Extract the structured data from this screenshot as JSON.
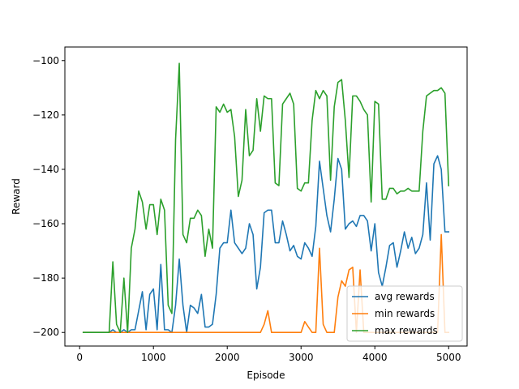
{
  "chart_data": {
    "type": "line",
    "title": "",
    "xlabel": "Episode",
    "ylabel": "Reward",
    "xlim": [
      -200,
      5250
    ],
    "ylim": [
      -205,
      -95
    ],
    "xticks": [
      0,
      1000,
      2000,
      3000,
      4000,
      5000
    ],
    "yticks": [
      -200,
      -180,
      -160,
      -140,
      -120,
      -100
    ],
    "xtick_labels": [
      "0",
      "1000",
      "2000",
      "3000",
      "4000",
      "5000"
    ],
    "ytick_labels": [
      "−200",
      "−180",
      "−160",
      "−140",
      "−120",
      "−100"
    ],
    "grid": false,
    "legend_position": "lower-right",
    "x": [
      50,
      100,
      150,
      200,
      250,
      300,
      350,
      400,
      450,
      500,
      550,
      600,
      650,
      700,
      750,
      800,
      850,
      900,
      950,
      1000,
      1050,
      1100,
      1150,
      1200,
      1250,
      1300,
      1350,
      1400,
      1450,
      1500,
      1550,
      1600,
      1650,
      1700,
      1750,
      1800,
      1850,
      1900,
      1950,
      2000,
      2050,
      2100,
      2150,
      2200,
      2250,
      2300,
      2350,
      2400,
      2450,
      2500,
      2550,
      2600,
      2650,
      2700,
      2750,
      2800,
      2850,
      2900,
      2950,
      3000,
      3050,
      3100,
      3150,
      3200,
      3250,
      3300,
      3350,
      3400,
      3450,
      3500,
      3550,
      3600,
      3650,
      3700,
      3750,
      3800,
      3850,
      3900,
      3950,
      4000,
      4050,
      4100,
      4150,
      4200,
      4250,
      4300,
      4350,
      4400,
      4450,
      4500,
      4550,
      4600,
      4650,
      4700,
      4750,
      4800,
      4850,
      4900,
      4950,
      5000
    ],
    "series": [
      {
        "name": "avg rewards",
        "color": "#1f77b4",
        "values": [
          -200,
          -200,
          -200,
          -200,
          -200,
          -200,
          -200,
          -200,
          -199,
          -200,
          -200,
          -199,
          -200,
          -199,
          -199,
          -192,
          -185,
          -199,
          -186,
          -184,
          -199,
          -175,
          -199,
          -199,
          -200,
          -190,
          -173,
          -190,
          -200,
          -190,
          -191,
          -193,
          -186,
          -198,
          -198,
          -197,
          -186,
          -169,
          -167,
          -167,
          -155,
          -167,
          -169,
          -171,
          -169,
          -160,
          -164,
          -184,
          -176,
          -156,
          -155,
          -155,
          -167,
          -167,
          -159,
          -164,
          -170,
          -168,
          -172,
          -173,
          -167,
          -169,
          -172,
          -161,
          -137,
          -147,
          -157,
          -163,
          -151,
          -136,
          -140,
          -162,
          -160,
          -159,
          -161,
          -157,
          -157,
          -159,
          -170,
          -160,
          -178,
          -183,
          -176,
          -168,
          -167,
          -176,
          -170,
          -163,
          -169,
          -165,
          -171,
          -169,
          -164,
          -145,
          -166,
          -138,
          -135,
          -140,
          -163,
          -163
        ]
      },
      {
        "name": "min rewards",
        "color": "#ff7f0e",
        "values": [
          -200,
          -200,
          -200,
          -200,
          -200,
          -200,
          -200,
          -200,
          -200,
          -200,
          -200,
          -200,
          -200,
          -200,
          -200,
          -200,
          -200,
          -200,
          -200,
          -200,
          -200,
          -200,
          -200,
          -200,
          -200,
          -200,
          -200,
          -200,
          -200,
          -200,
          -200,
          -200,
          -200,
          -200,
          -200,
          -200,
          -200,
          -200,
          -200,
          -200,
          -200,
          -200,
          -200,
          -200,
          -200,
          -200,
          -200,
          -200,
          -200,
          -197,
          -192,
          -200,
          -200,
          -200,
          -200,
          -200,
          -200,
          -200,
          -200,
          -200,
          -196,
          -198,
          -200,
          -200,
          -169,
          -197,
          -200,
          -200,
          -200,
          -187,
          -181,
          -183,
          -177,
          -176,
          -200,
          -177,
          -200,
          -200,
          -200,
          -200,
          -200,
          -200,
          -200,
          -200,
          -200,
          -200,
          -200,
          -200,
          -200,
          -200,
          -200,
          -200,
          -200,
          -200,
          -200,
          -200,
          -200,
          -164,
          -200,
          -200
        ]
      },
      {
        "name": "max rewards",
        "color": "#2ca02c",
        "values": [
          -200,
          -200,
          -200,
          -200,
          -200,
          -200,
          -200,
          -200,
          -174,
          -197,
          -200,
          -180,
          -200,
          -169,
          -162,
          -148,
          -152,
          -162,
          -153,
          -153,
          -164,
          -151,
          -155,
          -190,
          -193,
          -129,
          -101,
          -164,
          -167,
          -158,
          -158,
          -155,
          -157,
          -172,
          -162,
          -169,
          -117,
          -119,
          -116,
          -119,
          -118,
          -128,
          -150,
          -144,
          -118,
          -135,
          -133,
          -114,
          -126,
          -113,
          -114,
          -114,
          -145,
          -146,
          -116,
          -114,
          -112,
          -116,
          -147,
          -148,
          -145,
          -145,
          -122,
          -111,
          -114,
          -111,
          -113,
          -144,
          -117,
          -108,
          -107,
          -122,
          -143,
          -113,
          -113,
          -115,
          -118,
          -120,
          -152,
          -115,
          -116,
          -151,
          -151,
          -147,
          -147,
          -149,
          -148,
          -148,
          -147,
          -148,
          -148,
          -148,
          -126,
          -113,
          -112,
          -111,
          -111,
          -110,
          -112,
          -146
        ]
      }
    ]
  }
}
